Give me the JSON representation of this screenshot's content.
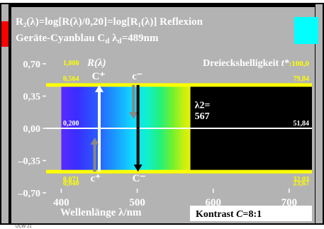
{
  "header": {
    "line1": "R₂(λ)=log[R(λ)/0,20]=log[R₁(λ)] Reflexion",
    "line2": "Geräte-Cyanblau C",
    "line2_sub": "d",
    "lambda_label": "λ",
    "lambda_sub": "d",
    "lambda_value": "=489nm"
  },
  "colors": {
    "frame_gray": "#bbbbbb",
    "panel_gray": "#b3b3b3",
    "cyan_patch": "#00ffff",
    "left_accent_red": "#ff0000",
    "yellow": "#ffff00",
    "white": "#ffffff",
    "black": "#000000",
    "arrow_gray": "#888888"
  },
  "chart_data": {
    "type": "line",
    "title": "Dreieckshelligkeit t*:100,0",
    "title_main": "Dreieckshelligkeit ",
    "title_var": "t*",
    "title_value": ":100,0",
    "xlabel": "Wellenlänge λ/nm",
    "xlim": [
      380,
      730
    ],
    "ylim": [
      -0.7,
      0.7
    ],
    "x_ticks": [
      400,
      500,
      600,
      700
    ],
    "x_tick_labels": [
      "400",
      "500",
      "600",
      "700"
    ],
    "y_ticks": [
      0.7,
      0.35,
      0.0,
      -0.35,
      -0.7
    ],
    "y_tick_labels": [
      "0,70",
      "0,35",
      "0,00",
      "–0,35",
      "–0,70"
    ],
    "spectrum_range": [
      400,
      570
    ],
    "black_range": [
      570,
      730
    ],
    "horizontal_lines": [
      {
        "name": "top_yellow",
        "y": 0.47,
        "left_label": "0,564",
        "right_label": "79,84",
        "color": "#ffff00"
      },
      {
        "name": "middle_white",
        "y": 0.0,
        "left_label": "0,200",
        "right_label": "51,84",
        "color": "#ffffff"
      },
      {
        "name": "bottom_yellow",
        "y": -0.47,
        "left_label": "0,071",
        "right_label": "32,03",
        "color": "#ffff00"
      }
    ],
    "extra_left_labels": [
      {
        "text": "1,000",
        "y": 0.7
      },
      {
        "text": "0,040",
        "y": -0.52
      }
    ],
    "extra_right_labels": [
      {
        "text": "23,67",
        "y": -0.52
      }
    ],
    "corner_label": "R(λ)",
    "lambda2_label": "λ2=",
    "lambda2_value": "567",
    "c_plus_top": "C⁺",
    "c_minus_top": "c⁻",
    "c_plus_bottom": "c⁺",
    "c_minus_bottom": "C⁻",
    "arrows": [
      {
        "name": "white_up",
        "x": 450,
        "from": -0.47,
        "to": 0.47,
        "color": "#ffffff",
        "dir": "up"
      },
      {
        "name": "gray_up",
        "x": 444,
        "from": -0.47,
        "to": -0.1,
        "color": "#888888",
        "dir": "up"
      },
      {
        "name": "gray_down",
        "x": 495,
        "from": 0.47,
        "to": 0.1,
        "color": "#888888",
        "dir": "down"
      },
      {
        "name": "black_down",
        "x": 501,
        "from": 0.47,
        "to": -0.47,
        "color": "#000000",
        "dir": "down"
      }
    ],
    "kontrast": "Kontrast C=8:1",
    "kontrast_main": "Kontrast ",
    "kontrast_var": "C",
    "kontrast_value": "=8:1"
  },
  "footer": {
    "tiny": "DCW 21"
  }
}
